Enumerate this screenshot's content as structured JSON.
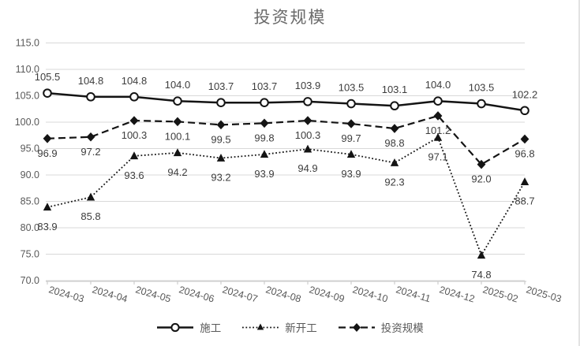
{
  "window": {
    "background": "#ffffff",
    "right_border_color": "#e3e3e3"
  },
  "chart_data": {
    "type": "line",
    "title": "投资规模",
    "xlabel": "",
    "ylabel": "",
    "categories": [
      "2024-03",
      "2024-04",
      "2024-05",
      "2024-06",
      "2024-07",
      "2024-08",
      "2024-09",
      "2024-10",
      "2024-11",
      "2024-12",
      "2025-02",
      "2025-03"
    ],
    "series": [
      {
        "name": "施工",
        "line": "solid",
        "marker": "circle",
        "values": [
          105.5,
          104.8,
          104.8,
          104.0,
          103.7,
          103.7,
          103.9,
          103.5,
          103.1,
          104.0,
          103.5,
          102.2
        ]
      },
      {
        "name": "新开工",
        "line": "dotted",
        "marker": "triangle",
        "values": [
          83.9,
          85.8,
          93.6,
          94.2,
          93.2,
          93.9,
          94.9,
          93.9,
          92.3,
          97.1,
          74.8,
          88.7
        ]
      },
      {
        "name": "投资规模",
        "line": "dashed",
        "marker": "diamond",
        "values": [
          96.9,
          97.2,
          100.3,
          100.1,
          99.5,
          99.8,
          100.3,
          99.7,
          98.8,
          101.2,
          92.0,
          96.8
        ]
      }
    ],
    "ylim": [
      70,
      115
    ],
    "yticks": [
      "115.0",
      "110.0",
      "105.0",
      "100.0",
      "95.0",
      "90.0",
      "85.0",
      "80.0",
      "75.0",
      "70.0"
    ],
    "grid": true,
    "legend_position": "bottom",
    "colors": {
      "series": "#141414",
      "grid": "#d9d9d9",
      "axis_line": "#c6c6c6",
      "axis_text": "#595959",
      "data_label": "#3d3d3d",
      "title": "#6a6a6a"
    }
  }
}
